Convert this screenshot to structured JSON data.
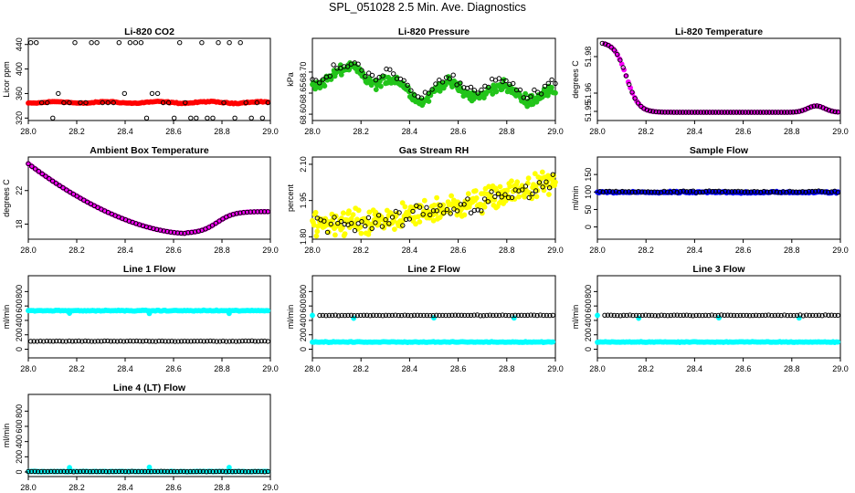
{
  "page_title": "SPL_051028  2.5 Min. Ave. Diagnostics",
  "colors": {
    "red": "#ff0000",
    "green": "#22c41a",
    "magenta": "#ff00ff",
    "yellow": "#ffff00",
    "blue": "#0000ff",
    "cyan": "#00ffff",
    "black": "#000000"
  },
  "chart_data": [
    {
      "type": "scatter",
      "id": "co2",
      "title": "Li-820 CO2",
      "ylabel": "Licor ppm",
      "xlim": [
        28.0,
        29.0
      ],
      "ylim": [
        316,
        450
      ],
      "xticks": [
        "28.0",
        "28.2",
        "28.4",
        "28.6",
        "28.8",
        "29.0"
      ],
      "yticks": [
        {
          "v": 320,
          "l": "320"
        },
        {
          "v": 360,
          "l": "360"
        },
        {
          "v": 400,
          "l": "400"
        },
        {
          "v": 440,
          "l": "440"
        }
      ],
      "series": [
        {
          "name": "licor co2 (primary)",
          "color": "red",
          "gen": "co2red",
          "filled": true
        },
        {
          "name": "licor co2 (averages)",
          "color": "black",
          "gen": "co2black",
          "filled": false
        }
      ]
    },
    {
      "type": "scatter",
      "id": "pressure",
      "title": "Li-820 Pressure",
      "ylabel": "kPa",
      "xlim": [
        28.0,
        29.0
      ],
      "ylim": [
        68.585,
        68.78
      ],
      "xticks": [
        "28.0",
        "28.2",
        "28.4",
        "28.6",
        "28.8",
        "29.0"
      ],
      "yticks": [
        {
          "v": 68.6,
          "l": "68.60"
        },
        {
          "v": 68.65,
          "l": "68.65"
        },
        {
          "v": 68.7,
          "l": "68.70"
        }
      ],
      "series": [
        {
          "name": "pressure (primary)",
          "color": "green",
          "gen": "presGreen",
          "filled": true
        },
        {
          "name": "pressure (averages)",
          "color": "black",
          "gen": "presBlack",
          "filled": false
        }
      ]
    },
    {
      "type": "scatter",
      "id": "licor_temp",
      "title": "Li-820 Temperature",
      "ylabel": "degrees C",
      "xlim": [
        28.0,
        29.0
      ],
      "ylim": [
        51.945,
        51.99
      ],
      "xticks": [
        "28.0",
        "28.2",
        "28.4",
        "28.6",
        "28.8",
        "29.0"
      ],
      "yticks": [
        {
          "v": 51.95,
          "l": "51.95"
        },
        {
          "v": 51.96,
          "l": "51.96"
        },
        {
          "v": 51.98,
          "l": "51.98"
        }
      ],
      "series": [
        {
          "name": "licor temp (primary)",
          "color": "magenta",
          "gen": "ltempMag",
          "filled": true
        },
        {
          "name": "licor temp (averages)",
          "color": "black",
          "gen": "ltempBlack",
          "filled": false
        }
      ]
    },
    {
      "type": "scatter",
      "id": "box_temp",
      "title": "Ambient Box Temperature",
      "ylabel": "degrees C",
      "xlim": [
        28.0,
        29.0
      ],
      "ylim": [
        16.2,
        26.0
      ],
      "xticks": [
        "28.0",
        "28.2",
        "28.4",
        "28.6",
        "28.8",
        "29.0"
      ],
      "yticks": [
        {
          "v": 18,
          "l": "18"
        },
        {
          "v": 22,
          "l": "22"
        }
      ],
      "series": [
        {
          "name": "box temp (primary)",
          "color": "magenta",
          "gen": "boxMag",
          "filled": true
        },
        {
          "name": "box temp (averages)",
          "color": "black",
          "gen": "boxBlack",
          "filled": false
        }
      ]
    },
    {
      "type": "scatter",
      "id": "rh",
      "title": "Gas Stream RH",
      "ylabel": "percent",
      "xlim": [
        28.0,
        29.0
      ],
      "ylim": [
        1.79,
        2.13
      ],
      "xticks": [
        "28.0",
        "28.2",
        "28.4",
        "28.6",
        "28.8",
        "29.0"
      ],
      "yticks": [
        {
          "v": 1.8,
          "l": "1.80"
        },
        {
          "v": 1.95,
          "l": "1.95"
        },
        {
          "v": 2.1,
          "l": "2.10"
        }
      ],
      "series": [
        {
          "name": "rh (primary)",
          "color": "yellow",
          "gen": "rhYellow",
          "filled": true
        },
        {
          "name": "rh (averages)",
          "color": "black",
          "gen": "rhBlack",
          "filled": false
        }
      ]
    },
    {
      "type": "scatter",
      "id": "sample_flow",
      "title": "Sample Flow",
      "ylabel": "ml/min",
      "xlim": [
        28.0,
        29.0
      ],
      "ylim": [
        -35,
        200
      ],
      "xticks": [
        "28.0",
        "28.2",
        "28.4",
        "28.6",
        "28.8",
        "29.0"
      ],
      "yticks": [
        {
          "v": 0,
          "l": "0"
        },
        {
          "v": 50,
          "l": "50"
        },
        {
          "v": 100,
          "l": "100"
        },
        {
          "v": 150,
          "l": "150"
        }
      ],
      "series": [
        {
          "name": "sample flow (primary)",
          "color": "blue",
          "gen": "sampleBlue",
          "filled": true
        },
        {
          "name": "sample flow (averages)",
          "color": "black",
          "gen": "sampleBlack",
          "filled": false
        }
      ]
    },
    {
      "type": "scatter",
      "id": "line1",
      "title": "Line 1 Flow",
      "ylabel": "ml/min",
      "xlim": [
        28.0,
        29.0
      ],
      "ylim": [
        -120,
        1020
      ],
      "xticks": [
        "28.0",
        "28.2",
        "28.4",
        "28.6",
        "28.8",
        "29.0"
      ],
      "yticks": [
        {
          "v": 0,
          "l": "0"
        },
        {
          "v": 200,
          "l": "200"
        },
        {
          "v": 400,
          "l": "400"
        },
        {
          "v": 600,
          "l": "600"
        },
        {
          "v": 800,
          "l": "800"
        }
      ],
      "series": [
        {
          "name": "line 1 flow (cyan)",
          "color": "cyan",
          "gen": "line1Cyan",
          "filled": true
        },
        {
          "name": "line 1 flow (averages)",
          "color": "black",
          "gen": "line1Black",
          "filled": false
        }
      ]
    },
    {
      "type": "scatter",
      "id": "line2",
      "title": "Line 2 Flow",
      "ylabel": "ml/min",
      "xlim": [
        28.0,
        29.0
      ],
      "ylim": [
        -120,
        1020
      ],
      "xticks": [
        "28.0",
        "28.2",
        "28.4",
        "28.6",
        "28.8",
        "29.0"
      ],
      "yticks": [
        {
          "v": 0,
          "l": "0"
        },
        {
          "v": 200,
          "l": "200"
        },
        {
          "v": 400,
          "l": "400"
        },
        {
          "v": 600,
          "l": "600"
        },
        {
          "v": 800,
          "l": "800"
        }
      ],
      "series": [
        {
          "name": "line 2 flow (cyan)",
          "color": "cyan",
          "gen": "line2Cyan",
          "filled": true
        },
        {
          "name": "line 2 flow (averages)",
          "color": "black",
          "gen": "line2Black",
          "filled": false
        }
      ]
    },
    {
      "type": "scatter",
      "id": "line3",
      "title": "Line 3 Flow",
      "ylabel": "ml/min",
      "xlim": [
        28.0,
        29.0
      ],
      "ylim": [
        -120,
        1020
      ],
      "xticks": [
        "28.0",
        "28.2",
        "28.4",
        "28.6",
        "28.8",
        "29.0"
      ],
      "yticks": [
        {
          "v": 0,
          "l": "0"
        },
        {
          "v": 200,
          "l": "200"
        },
        {
          "v": 400,
          "l": "400"
        },
        {
          "v": 600,
          "l": "600"
        },
        {
          "v": 800,
          "l": "800"
        }
      ],
      "series": [
        {
          "name": "line 3 flow (cyan)",
          "color": "cyan",
          "gen": "line2Cyan",
          "filled": true
        },
        {
          "name": "line 3 flow (averages)",
          "color": "black",
          "gen": "line2Black",
          "filled": false
        }
      ]
    },
    {
      "type": "scatter",
      "id": "line4",
      "title": "Line 4 (LT) Flow",
      "ylabel": "ml/min",
      "xlim": [
        28.0,
        29.0
      ],
      "ylim": [
        -60,
        1020
      ],
      "xticks": [
        "28.0",
        "28.2",
        "28.4",
        "28.6",
        "28.8",
        "29.0"
      ],
      "yticks": [
        {
          "v": 0,
          "l": "0"
        },
        {
          "v": 200,
          "l": "200"
        },
        {
          "v": 400,
          "l": "400"
        },
        {
          "v": 600,
          "l": "600"
        },
        {
          "v": 800,
          "l": "800"
        }
      ],
      "series": [
        {
          "name": "line 4 flow (cyan)",
          "color": "cyan",
          "gen": "line4Cyan",
          "filled": true
        },
        {
          "name": "line 4 flow (averages)",
          "color": "black",
          "gen": "line4Black",
          "filled": false
        }
      ]
    }
  ]
}
